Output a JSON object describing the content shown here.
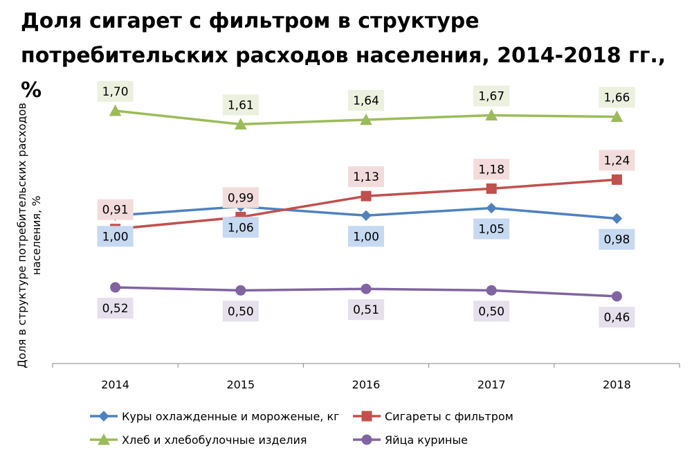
{
  "chart_data": {
    "type": "line",
    "title": "Доля сигарет с фильтром в  структуре потребительских расходов населения, 2014-2018 гг., %",
    "ylabel": "Доля в структуре потребительских расходов населения, %",
    "xlabel": "",
    "categories": [
      "2014",
      "2015",
      "2016",
      "2017",
      "2018"
    ],
    "grid": false,
    "legend_position": "bottom",
    "series": [
      {
        "name": "Куры охлажденные и мороженые, кг",
        "values": [
          1.0,
          1.06,
          1.0,
          1.05,
          0.98
        ],
        "labels": [
          "1,00",
          "1,06",
          "1,00",
          "1,05",
          "0,98"
        ],
        "label_placement": "below",
        "color": "#4F81BD",
        "label_bg": "#C6D9F1",
        "marker": "diamond"
      },
      {
        "name": "Сигареты с фильтром",
        "values": [
          0.91,
          0.99,
          1.13,
          1.18,
          1.24
        ],
        "labels": [
          "0,91",
          "0,99",
          "1,13",
          "1,18",
          "1,24"
        ],
        "label_placement": "above",
        "color": "#C0504D",
        "label_bg": "#F2DCDB",
        "marker": "square"
      },
      {
        "name": "Хлеб и хлебобулочные изделия",
        "values": [
          1.7,
          1.61,
          1.64,
          1.67,
          1.66
        ],
        "labels": [
          "1,70",
          "1,61",
          "1,64",
          "1,67",
          "1,66"
        ],
        "label_placement": "above",
        "color": "#9BBB59",
        "label_bg": "#EBF1DE",
        "marker": "triangle"
      },
      {
        "name": "Яйца куриные",
        "values": [
          0.52,
          0.5,
          0.51,
          0.5,
          0.46
        ],
        "labels": [
          "0,52",
          "0,50",
          "0,51",
          "0,50",
          "0,46"
        ],
        "label_placement": "below",
        "color": "#8064A2",
        "label_bg": "#E5E0EC",
        "marker": "circle"
      }
    ]
  }
}
